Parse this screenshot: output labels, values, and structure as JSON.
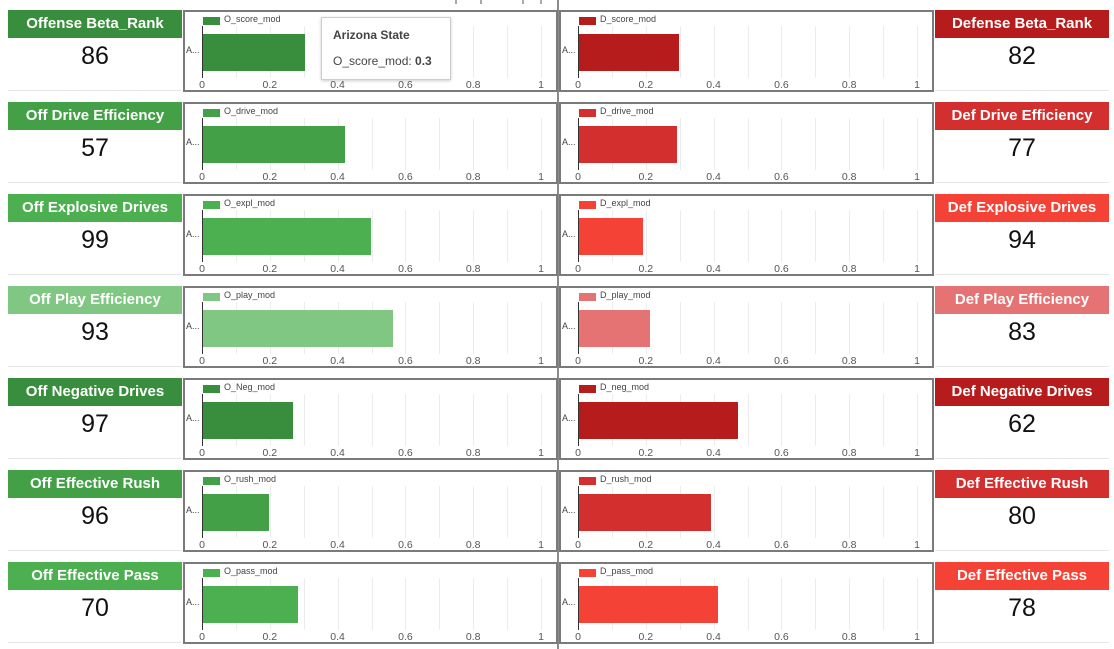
{
  "tooltip": {
    "title": "Arizona State",
    "label": "O_score_mod:",
    "value": "0.3"
  },
  "category_label": "A...",
  "ticks": [
    "0",
    "0.2",
    "0.4",
    "0.6",
    "0.8",
    "1"
  ],
  "rows": [
    {
      "off_title": "Offense Beta_Rank",
      "off_value": "86",
      "off_series": "O_score_mod",
      "off_bar": 0.3,
      "off_color": "#388e3c",
      "def_title": "Defense Beta_Rank",
      "def_value": "82",
      "def_series": "D_score_mod",
      "def_bar": 0.295,
      "def_color": "#b71c1c"
    },
    {
      "off_title": "Off Drive Efficiency",
      "off_value": "57",
      "off_series": "O_drive_mod",
      "off_bar": 0.42,
      "off_color": "#43a047",
      "def_title": "Def Drive Efficiency",
      "def_value": "77",
      "def_series": "D_drive_mod",
      "def_bar": 0.29,
      "def_color": "#d32f2f"
    },
    {
      "off_title": "Off Explosive Drives",
      "off_value": "99",
      "off_series": "O_expl_mod",
      "off_bar": 0.495,
      "off_color": "#4caf50",
      "def_title": "Def Explosive Drives",
      "def_value": "94",
      "def_series": "D_expl_mod",
      "def_bar": 0.19,
      "def_color": "#f44336"
    },
    {
      "off_title": "Off Play Efficiency",
      "off_value": "93",
      "off_series": "O_play_mod",
      "off_bar": 0.56,
      "off_color": "#81c784",
      "def_title": "Def Play Efficiency",
      "def_value": "83",
      "def_series": "D_play_mod",
      "def_bar": 0.21,
      "def_color": "#e57373"
    },
    {
      "off_title": "Off Negative Drives",
      "off_value": "97",
      "off_series": "O_Neg_mod",
      "off_bar": 0.265,
      "off_color": "#388e3c",
      "def_title": "Def Negative Drives",
      "def_value": "62",
      "def_series": "D_neg_mod",
      "def_bar": 0.47,
      "def_color": "#b71c1c"
    },
    {
      "off_title": "Off Effective Rush",
      "off_value": "96",
      "off_series": "O_rush_mod",
      "off_bar": 0.195,
      "off_color": "#43a047",
      "def_title": "Def Effective Rush",
      "def_value": "80",
      "def_series": "D_rush_mod",
      "def_bar": 0.39,
      "def_color": "#d32f2f"
    },
    {
      "off_title": "Off Effective Pass",
      "off_value": "70",
      "off_series": "O_pass_mod",
      "off_bar": 0.28,
      "off_color": "#4caf50",
      "def_title": "Def Effective Pass",
      "def_value": "78",
      "def_series": "D_pass_mod",
      "def_bar": 0.41,
      "def_color": "#f44336"
    }
  ]
}
